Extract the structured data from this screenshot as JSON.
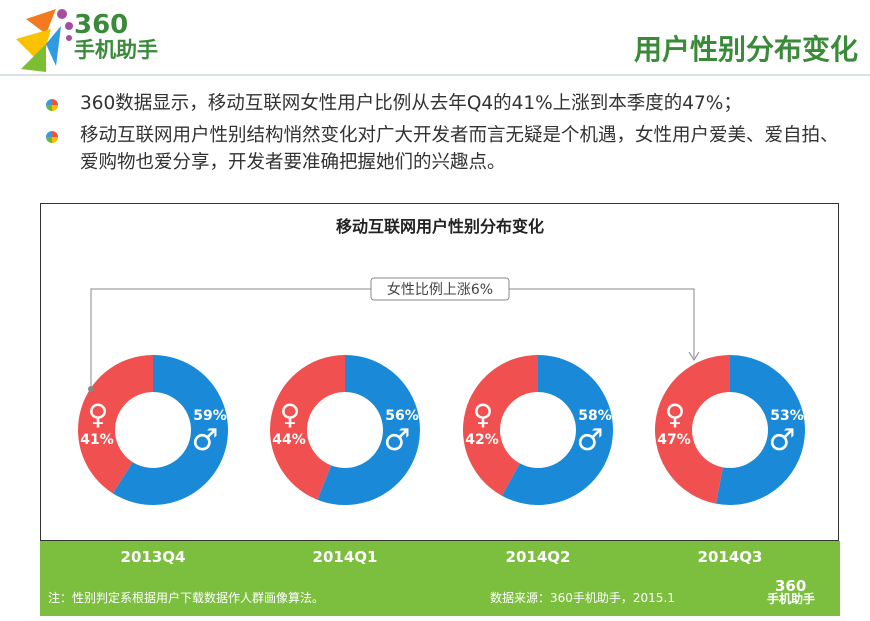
{
  "header": {
    "logo_num": "360",
    "logo_cn": "手机助手",
    "title": "用户性别分布变化"
  },
  "bullets": [
    "360数据显示，移动互联网女性用户比例从去年Q4的41%上涨到本季度的47%；",
    "移动互联网用户性别结构悄然变化对广大开发者而言无疑是个机遇，女性用户爱美、爱自拍、爱购物也爱分享，开发者要准确把握她们的兴趣点。"
  ],
  "chart_data": {
    "type": "pie",
    "title": "移动互联网用户性别分布变化",
    "annotation": "女性比例上涨6%",
    "categories": [
      "2013Q4",
      "2014Q1",
      "2014Q2",
      "2014Q3"
    ],
    "series": [
      {
        "name": "female",
        "symbol": "♀",
        "color": "#f05050",
        "values": [
          41,
          44,
          42,
          47
        ]
      },
      {
        "name": "male",
        "symbol": "♂",
        "color": "#1a8ad8",
        "values": [
          59,
          56,
          58,
          53
        ]
      }
    ]
  },
  "footer": {
    "note": "注：性别判定系根据用户下载数据作人群画像算法。",
    "source": "数据来源：360手机助手，2015.1",
    "logo_num": "360",
    "logo_cn": "手机助手"
  }
}
